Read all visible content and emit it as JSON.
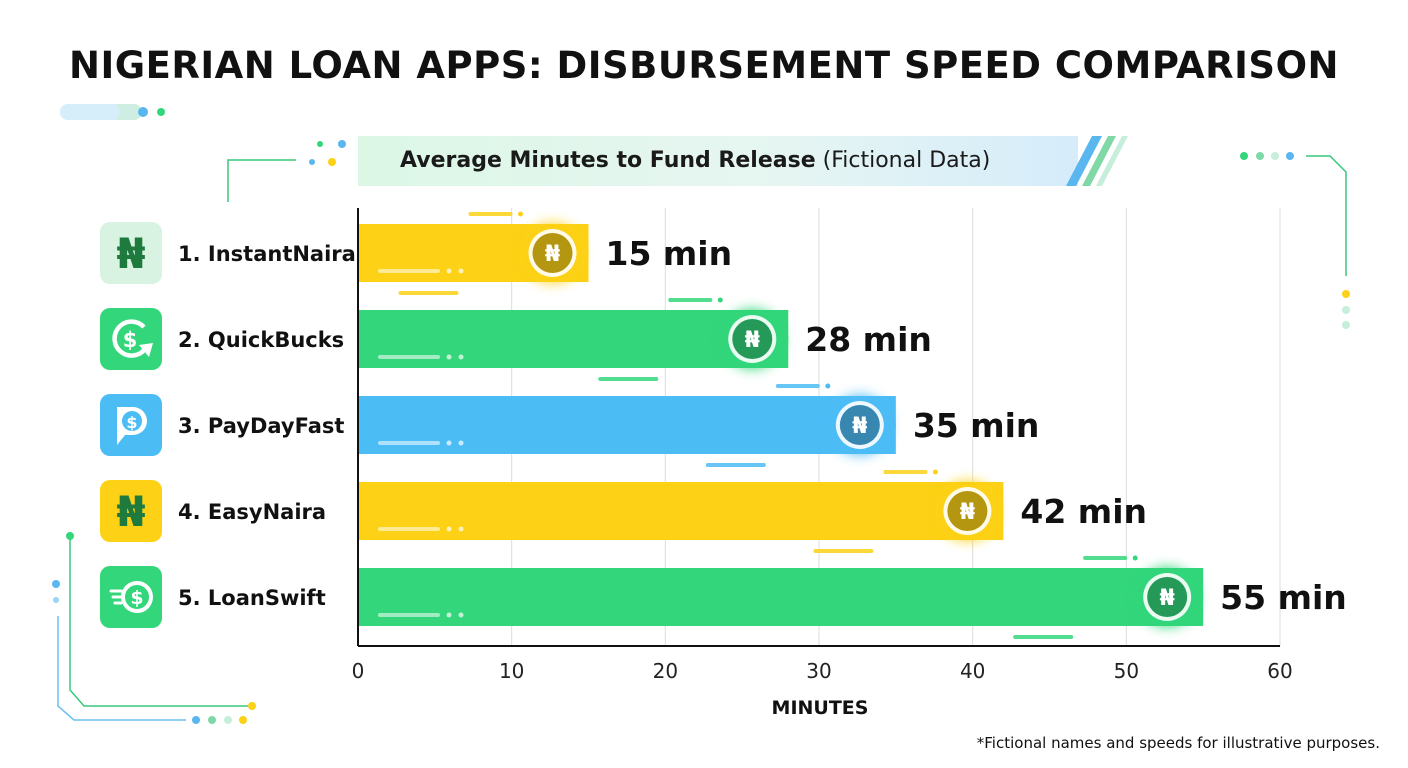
{
  "chart_data": {
    "type": "bar",
    "orientation": "horizontal",
    "title": "NIGERIAN LOAN APPS: DISBURSEMENT SPEED COMPARISON",
    "subtitle_bold": "Average Minutes to Fund Release",
    "subtitle_rest": "(Fictional Data)",
    "xlabel": "MINUTES",
    "xlim": [
      0,
      60
    ],
    "xticks": [
      0,
      10,
      20,
      30,
      40,
      50,
      60
    ],
    "grid": true,
    "categories": [
      "1. InstantNaira",
      "2. QuickBucks",
      "3. PayDayFast",
      "4. EasyNaira",
      "5. LoanSwift"
    ],
    "values": [
      15,
      28,
      35,
      42,
      55
    ],
    "value_labels": [
      "15 min",
      "28 min",
      "35 min",
      "42 min",
      "55 min"
    ],
    "bar_colors": [
      "#fcd116",
      "#33d67a",
      "#4cbcf5",
      "#fcd116",
      "#33d67a"
    ],
    "icons": [
      "naira-icon",
      "refresh-dollar-icon",
      "p-dollar-icon",
      "naira-icon",
      "fast-dollar-icon"
    ],
    "coin_symbol": "₦",
    "footnote": "*Fictional names and speeds for illustrative purposes."
  }
}
